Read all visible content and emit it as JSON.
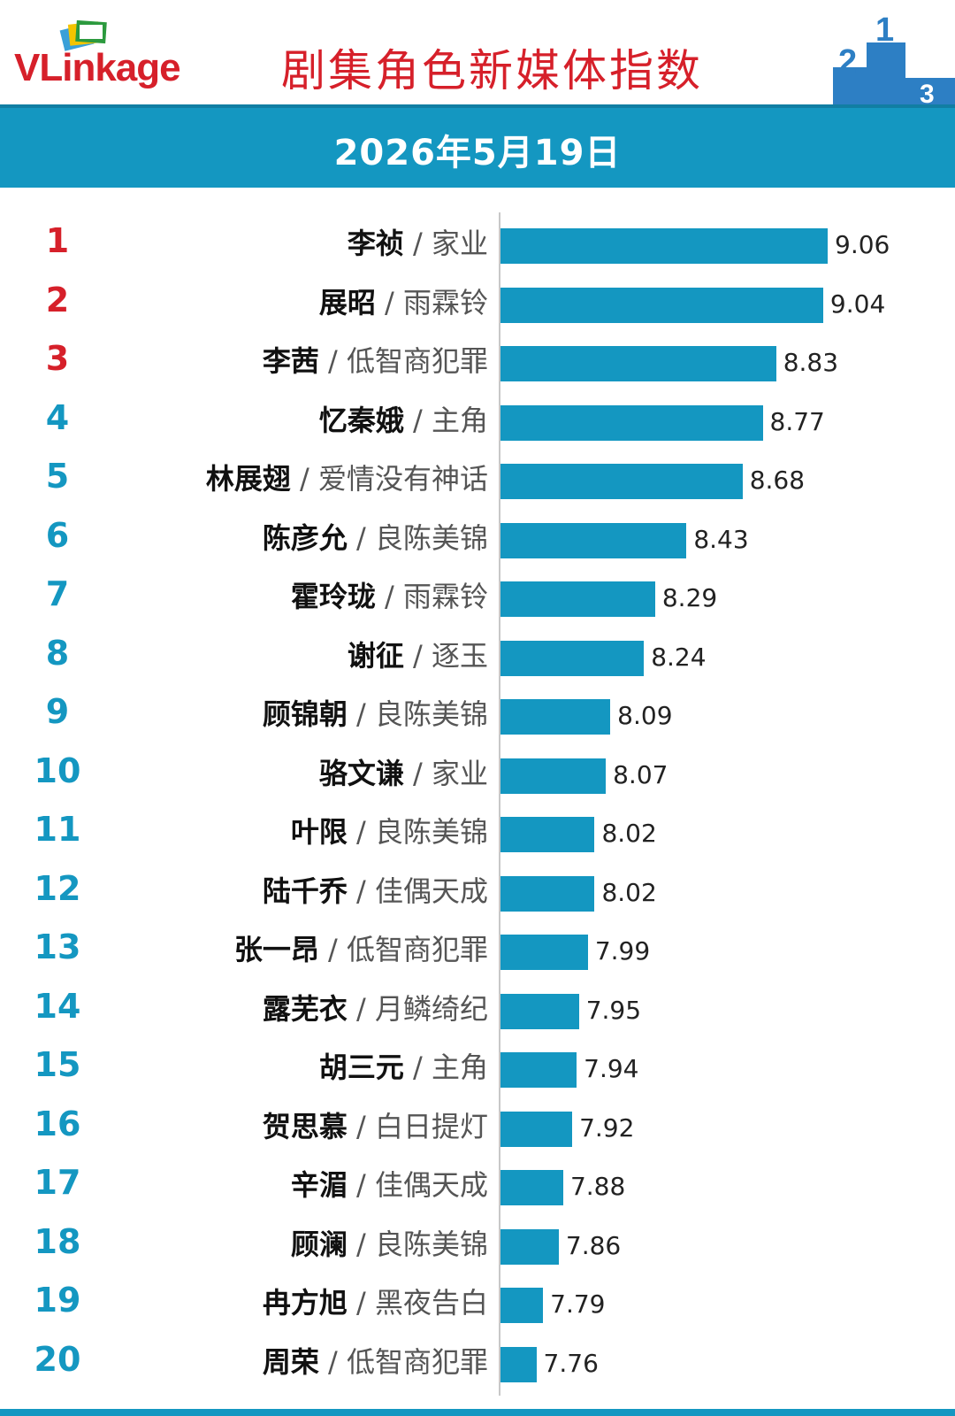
{
  "header": {
    "logo_text_1": "VLink",
    "logo_text_2": "age",
    "title": "剧集角色新媒体指数",
    "podium_digits": [
      "2",
      "1",
      "3"
    ]
  },
  "date": "2026年5月19日",
  "colors": {
    "bar": "#1497c1",
    "title": "#d6202a",
    "top_rank": "#d6202a",
    "rank": "#1497c1"
  },
  "chart_data": {
    "type": "bar",
    "orientation": "horizontal",
    "title": "剧集角色新媒体指数",
    "subtitle": "2026年5月19日",
    "categories": [
      "李祯 / 家业",
      "展昭 / 雨霖铃",
      "李茜 / 低智商犯罪",
      "忆秦娥 / 主角",
      "林展翅 / 爱情没有神话",
      "陈彦允 / 良陈美锦",
      "霍玲珑 / 雨霖铃",
      "谢征 / 逐玉",
      "顾锦朝 / 良陈美锦",
      "骆文谦 / 家业",
      "叶限 / 良陈美锦",
      "陆千乔 / 佳偶天成",
      "张一昂 / 低智商犯罪",
      "露芜衣 / 月鳞绮纪",
      "胡三元 / 主角",
      "贺思慕 / 白日提灯",
      "辛湄 / 佳偶天成",
      "顾澜 / 良陈美锦",
      "冉方旭 / 黑夜告白",
      "周荣 / 低智商犯罪"
    ],
    "values": [
      9.06,
      9.04,
      8.83,
      8.77,
      8.68,
      8.43,
      8.29,
      8.24,
      8.09,
      8.07,
      8.02,
      8.02,
      7.99,
      7.95,
      7.94,
      7.92,
      7.88,
      7.86,
      7.79,
      7.76
    ],
    "xlim": [
      7.6,
      9.06
    ],
    "grid": false,
    "rows": [
      {
        "rank": "1",
        "name": "李祯",
        "show": "家业",
        "value": 9.06,
        "value_label": "9.06"
      },
      {
        "rank": "2",
        "name": "展昭",
        "show": "雨霖铃",
        "value": 9.04,
        "value_label": "9.04"
      },
      {
        "rank": "3",
        "name": "李茜",
        "show": "低智商犯罪",
        "value": 8.83,
        "value_label": "8.83"
      },
      {
        "rank": "4",
        "name": "忆秦娥",
        "show": "主角",
        "value": 8.77,
        "value_label": "8.77"
      },
      {
        "rank": "5",
        "name": "林展翅",
        "show": "爱情没有神话",
        "value": 8.68,
        "value_label": "8.68"
      },
      {
        "rank": "6",
        "name": "陈彦允",
        "show": "良陈美锦",
        "value": 8.43,
        "value_label": "8.43"
      },
      {
        "rank": "7",
        "name": "霍玲珑",
        "show": "雨霖铃",
        "value": 8.29,
        "value_label": "8.29"
      },
      {
        "rank": "8",
        "name": "谢征",
        "show": "逐玉",
        "value": 8.24,
        "value_label": "8.24"
      },
      {
        "rank": "9",
        "name": "顾锦朝",
        "show": "良陈美锦",
        "value": 8.09,
        "value_label": "8.09"
      },
      {
        "rank": "10",
        "name": "骆文谦",
        "show": "家业",
        "value": 8.07,
        "value_label": "8.07"
      },
      {
        "rank": "11",
        "name": "叶限",
        "show": "良陈美锦",
        "value": 8.02,
        "value_label": "8.02"
      },
      {
        "rank": "12",
        "name": "陆千乔",
        "show": "佳偶天成",
        "value": 8.02,
        "value_label": "8.02"
      },
      {
        "rank": "13",
        "name": "张一昂",
        "show": "低智商犯罪",
        "value": 7.99,
        "value_label": "7.99"
      },
      {
        "rank": "14",
        "name": "露芜衣",
        "show": "月鳞绮纪",
        "value": 7.95,
        "value_label": "7.95"
      },
      {
        "rank": "15",
        "name": "胡三元",
        "show": "主角",
        "value": 7.94,
        "value_label": "7.94"
      },
      {
        "rank": "16",
        "name": "贺思慕",
        "show": "白日提灯",
        "value": 7.92,
        "value_label": "7.92"
      },
      {
        "rank": "17",
        "name": "辛湄",
        "show": "佳偶天成",
        "value": 7.88,
        "value_label": "7.88"
      },
      {
        "rank": "18",
        "name": "顾澜",
        "show": "良陈美锦",
        "value": 7.86,
        "value_label": "7.86"
      },
      {
        "rank": "19",
        "name": "冉方旭",
        "show": "黑夜告白",
        "value": 7.79,
        "value_label": "7.79"
      },
      {
        "rank": "20",
        "name": "周荣",
        "show": "低智商犯罪",
        "value": 7.76,
        "value_label": "7.76"
      }
    ]
  }
}
